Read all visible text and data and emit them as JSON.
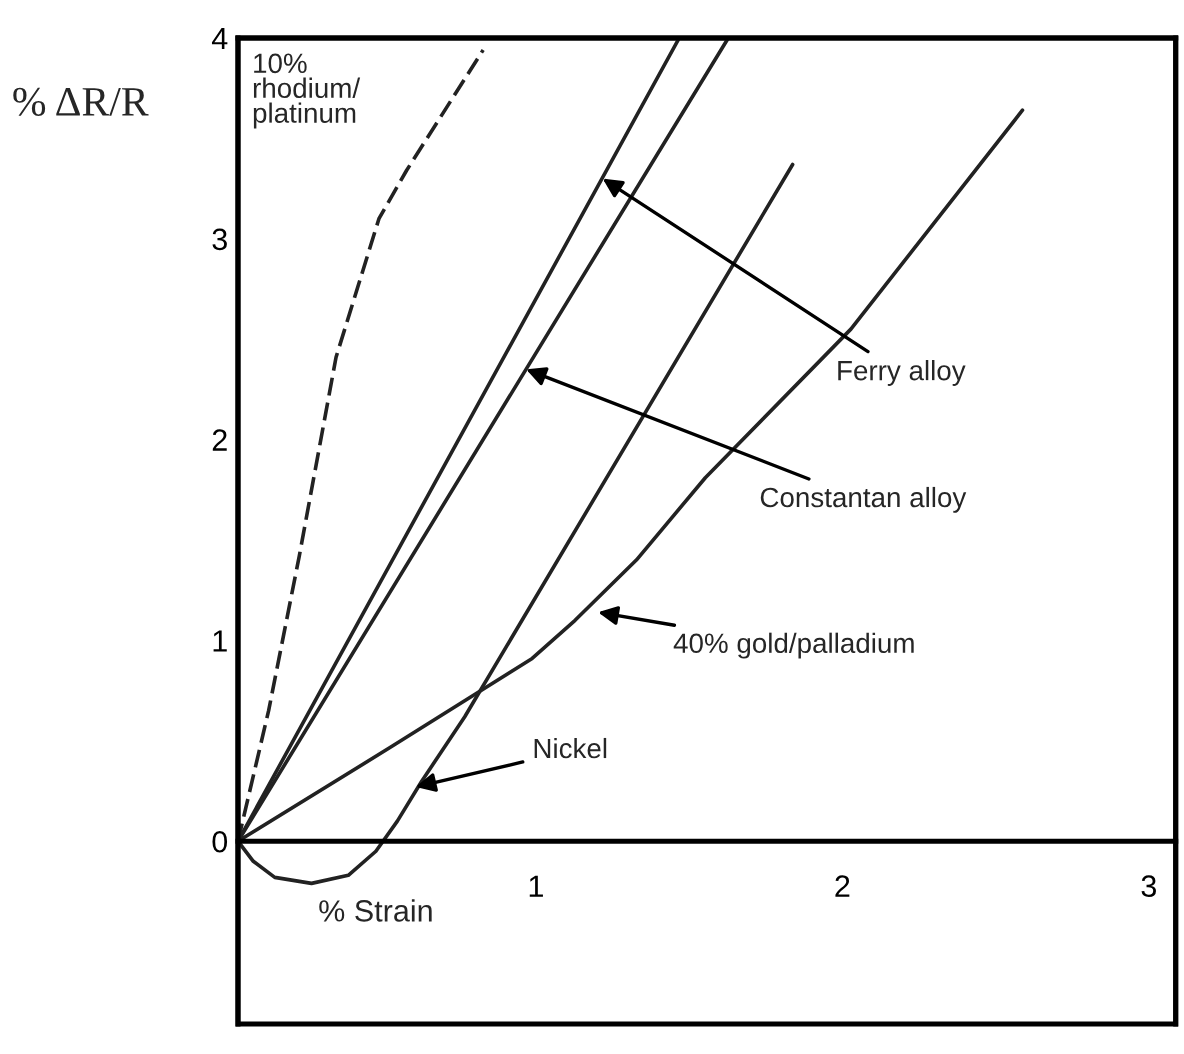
{
  "chart_data": {
    "type": "line",
    "xlabel": "% Strain",
    "ylabel": "% ΔR/R",
    "xlim": [
      0,
      3.06
    ],
    "ylim": [
      -0.91,
      4
    ],
    "xticks": [
      1,
      2,
      3
    ],
    "yticks": [
      0,
      1,
      2,
      3,
      4
    ],
    "grid": false,
    "marker": "none",
    "series": [
      {
        "color": "#222222",
        "line_style": "dashed",
        "x": [
          0,
          0.1,
          0.2,
          0.32,
          0.46,
          0.55,
          0.8
        ],
        "values": [
          0,
          0.65,
          1.42,
          2.41,
          3.1,
          3.34,
          3.94
        ]
      },
      {
        "color": "#222222",
        "line_style": "solid",
        "x": [
          0,
          1.44
        ],
        "values": [
          0,
          4.0
        ]
      },
      {
        "color": "#222222",
        "line_style": "solid",
        "x": [
          0,
          1.6
        ],
        "values": [
          0,
          4.0
        ]
      },
      {
        "color": "#222222",
        "line_style": "solid",
        "x": [
          0,
          0.05,
          0.12,
          0.24,
          0.36,
          0.45,
          0.52,
          0.6,
          0.74,
          1.81
        ],
        "values": [
          0,
          -0.1,
          -0.18,
          -0.21,
          -0.17,
          -0.05,
          0.1,
          0.3,
          0.62,
          3.37
        ]
      },
      {
        "color": "#222222",
        "line_style": "solid",
        "x": [
          0,
          0.5,
          0.96,
          1.1,
          1.3,
          1.525,
          2.0,
          2.56
        ],
        "values": [
          0,
          0.47,
          0.91,
          1.1,
          1.4,
          1.81,
          2.55,
          3.64
        ]
      }
    ],
    "annotations": [
      "10%\nrhodium/\nplatinum",
      {
        "text": "Ferry alloy",
        "x": 1.19,
        "y": 3.3
      },
      {
        "text": "Constantan alloy",
        "x": 0.94,
        "y": 2.35
      },
      {
        "text": "40% gold/palladium",
        "x": 1.175,
        "y": 1.14
      },
      {
        "text": "Nickel",
        "x": 0.58,
        "y": 0.27
      }
    ]
  }
}
